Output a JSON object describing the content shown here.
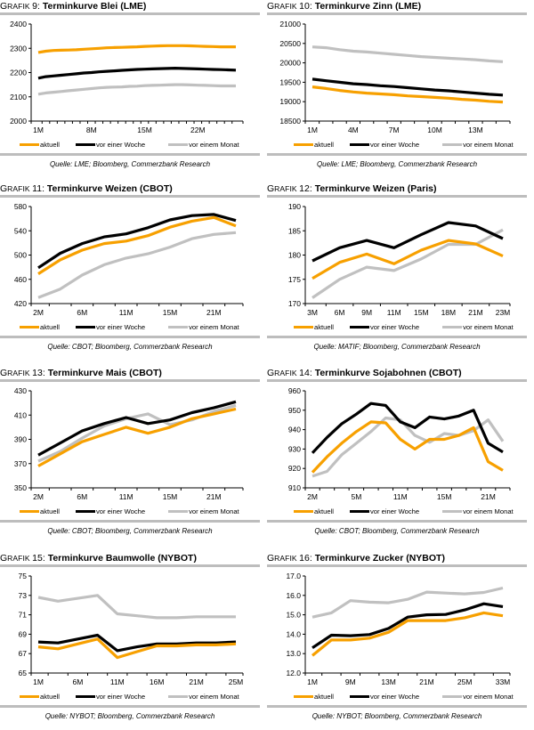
{
  "legend_labels": [
    "aktuell",
    "vor einer Woche",
    "vor einem Monat"
  ],
  "colors": {
    "aktuell": "#F7A000",
    "woche": "#000000",
    "monat": "#C0C0C0",
    "rule": "#BDBDBD"
  },
  "chart_data": [
    {
      "id": "g9",
      "type": "line",
      "prefix": "Grafik",
      "number": "9",
      "title": "Terminkurve Blei (LME)",
      "source": "Quelle: LME; Bloomberg, Commerzbank Research",
      "xlabel": "",
      "ylabel": "",
      "ylim": [
        2000,
        2400
      ],
      "yticks": [
        "2000",
        "2100",
        "2200",
        "2300",
        "2400"
      ],
      "ytick_values": [
        2000,
        2100,
        2200,
        2300,
        2400
      ],
      "x": [
        "1M",
        "2M",
        "3M",
        "4M",
        "5M",
        "6M",
        "7M",
        "8M",
        "9M",
        "10M",
        "11M",
        "12M",
        "13M",
        "14M",
        "15M",
        "16M",
        "17M",
        "18M",
        "19M",
        "20M",
        "21M",
        "22M",
        "23M",
        "24M",
        "25M",
        "26M",
        "27M"
      ],
      "xtick_labels": [
        "1M",
        "8M",
        "15M",
        "22M"
      ],
      "xtick_index": [
        0,
        7,
        14,
        21
      ],
      "series": [
        {
          "name": "aktuell",
          "values": [
            2283,
            2288,
            2291,
            2292,
            2293,
            2294,
            2296,
            2298,
            2300,
            2302,
            2303,
            2304,
            2305,
            2306,
            2308,
            2309,
            2310,
            2311,
            2311,
            2311,
            2310,
            2309,
            2308,
            2307,
            2306,
            2306,
            2306
          ]
        },
        {
          "name": "vor einer Woche",
          "values": [
            2177,
            2183,
            2186,
            2189,
            2192,
            2195,
            2198,
            2200,
            2203,
            2205,
            2207,
            2209,
            2211,
            2213,
            2214,
            2215,
            2216,
            2217,
            2218,
            2217,
            2216,
            2215,
            2214,
            2213,
            2212,
            2211,
            2210
          ]
        },
        {
          "name": "vor einem Monat",
          "values": [
            2111,
            2116,
            2119,
            2122,
            2125,
            2128,
            2131,
            2134,
            2137,
            2139,
            2140,
            2141,
            2143,
            2144,
            2146,
            2147,
            2148,
            2149,
            2150,
            2150,
            2149,
            2148,
            2147,
            2146,
            2145,
            2145,
            2145
          ]
        }
      ]
    },
    {
      "id": "g10",
      "type": "line",
      "prefix": "Grafik",
      "number": "10",
      "title": "Terminkurve Zinn (LME)",
      "source": "Quelle: LME; Bloomberg, Commerzbank Research",
      "xlabel": "",
      "ylabel": "",
      "ylim": [
        18500,
        21000
      ],
      "yticks": [
        "18500",
        "19000",
        "19500",
        "20000",
        "20500",
        "21000"
      ],
      "ytick_values": [
        18500,
        19000,
        19500,
        20000,
        20500,
        21000
      ],
      "x": [
        "1M",
        "2M",
        "3M",
        "4M",
        "5M",
        "6M",
        "7M",
        "8M",
        "9M",
        "10M",
        "11M",
        "12M",
        "13M",
        "14M",
        "15M"
      ],
      "xtick_labels": [
        "1M",
        "4M",
        "7M",
        "10M",
        "13M"
      ],
      "xtick_index": [
        0,
        3,
        6,
        9,
        12
      ],
      "series": [
        {
          "name": "aktuell",
          "values": [
            19380,
            19340,
            19290,
            19250,
            19220,
            19200,
            19180,
            19150,
            19130,
            19110,
            19090,
            19060,
            19040,
            19010,
            18990
          ]
        },
        {
          "name": "vor einer Woche",
          "values": [
            19580,
            19540,
            19500,
            19460,
            19440,
            19410,
            19390,
            19360,
            19330,
            19300,
            19280,
            19250,
            19220,
            19190,
            19170
          ]
        },
        {
          "name": "vor einem Monat",
          "values": [
            20410,
            20390,
            20340,
            20300,
            20280,
            20250,
            20220,
            20190,
            20160,
            20140,
            20120,
            20100,
            20080,
            20050,
            20030
          ]
        }
      ]
    },
    {
      "id": "g11",
      "type": "line",
      "prefix": "Grafik",
      "number": "11",
      "title": "Terminkurve Weizen (CBOT)",
      "source": "Quelle: CBOT; Bloomberg, Commerzbank Research",
      "xlabel": "",
      "ylabel": "",
      "ylim": [
        420,
        580
      ],
      "yticks": [
        "420",
        "460",
        "500",
        "540",
        "580"
      ],
      "ytick_values": [
        420,
        460,
        500,
        540,
        580
      ],
      "x": [
        "2M",
        "4M",
        "6M",
        "8M",
        "11M",
        "13M",
        "15M",
        "18M",
        "21M",
        "23M"
      ],
      "xtick_labels": [
        "2M",
        "6M",
        "11M",
        "15M",
        "21M"
      ],
      "xtick_index": [
        0,
        2,
        4,
        6,
        8
      ],
      "series": [
        {
          "name": "aktuell",
          "values": [
            469,
            492,
            508,
            519,
            523,
            532,
            546,
            556,
            562,
            548
          ]
        },
        {
          "name": "vor einer Woche",
          "values": [
            479,
            503,
            519,
            530,
            535,
            545,
            558,
            565,
            567,
            557
          ]
        },
        {
          "name": "vor einem Monat",
          "values": [
            430,
            444,
            467,
            484,
            495,
            502,
            513,
            527,
            534,
            537
          ]
        }
      ]
    },
    {
      "id": "g12",
      "type": "line",
      "prefix": "Grafik",
      "number": "12",
      "title": "Terminkurve Weizen (Paris)",
      "source": "Quelle: MATIF; Bloomberg, Commerzbank Research",
      "xlabel": "",
      "ylabel": "",
      "ylim": [
        170,
        190
      ],
      "yticks": [
        "170",
        "175",
        "180",
        "185",
        "190"
      ],
      "ytick_values": [
        170,
        175,
        180,
        185,
        190
      ],
      "x": [
        "3M",
        "6M",
        "9M",
        "11M",
        "15M",
        "18M",
        "21M",
        "23M"
      ],
      "xtick_labels": [
        "3M",
        "6M",
        "9M",
        "11M",
        "15M",
        "18M",
        "21M",
        "23M"
      ],
      "xtick_index": [
        0,
        1,
        2,
        3,
        4,
        5,
        6,
        7
      ],
      "series": [
        {
          "name": "aktuell",
          "values": [
            175.2,
            178.5,
            180.2,
            178.2,
            181.0,
            183.0,
            182.3,
            179.8
          ]
        },
        {
          "name": "vor einer Woche",
          "values": [
            178.8,
            181.5,
            183.0,
            181.5,
            184.2,
            186.7,
            186.0,
            183.4
          ]
        },
        {
          "name": "vor einem Monat",
          "values": [
            171.2,
            175.0,
            177.5,
            176.8,
            179.2,
            182.2,
            182.2,
            185.2
          ]
        }
      ]
    },
    {
      "id": "g13",
      "type": "line",
      "prefix": "Grafik",
      "number": "13",
      "title": "Terminkurve Mais (CBOT)",
      "source": "Quelle: CBOT; Bloomberg, Commerzbank Research",
      "xlabel": "",
      "ylabel": "",
      "ylim": [
        350,
        430
      ],
      "yticks": [
        "350",
        "370",
        "390",
        "410",
        "430"
      ],
      "ytick_values": [
        350,
        370,
        390,
        410,
        430
      ],
      "x": [
        "2M",
        "4M",
        "6M",
        "9M",
        "11M",
        "13M",
        "15M",
        "18M",
        "21M",
        "23M"
      ],
      "xtick_labels": [
        "2M",
        "6M",
        "11M",
        "15M",
        "21M"
      ],
      "xtick_index": [
        0,
        2,
        4,
        6,
        8
      ],
      "series": [
        {
          "name": "aktuell",
          "values": [
            368,
            378,
            388,
            394,
            400,
            395,
            400,
            407,
            411,
            415
          ]
        },
        {
          "name": "vor einer Woche",
          "values": [
            377,
            387,
            397,
            403,
            408,
            403,
            406,
            412,
            416,
            421
          ]
        },
        {
          "name": "vor einem Monat",
          "values": [
            372,
            380,
            391,
            401,
            407,
            411,
            402,
            406,
            413,
            418
          ]
        }
      ]
    },
    {
      "id": "g14",
      "type": "line",
      "prefix": "Grafik",
      "number": "14",
      "title": "Terminkurve Sojabohnen (CBOT)",
      "source": "Quelle: CBOT; Bloomberg, Commerzbank Research",
      "xlabel": "",
      "ylabel": "",
      "ylim": [
        910,
        960
      ],
      "yticks": [
        "910",
        "920",
        "930",
        "940",
        "950",
        "960"
      ],
      "ytick_values": [
        910,
        920,
        930,
        940,
        950,
        960
      ],
      "x": [
        "2M",
        "3M",
        "4M",
        "5M",
        "7M",
        "9M",
        "11M",
        "13M",
        "14M",
        "15M",
        "17M",
        "19M",
        "21M",
        "23M"
      ],
      "xtick_labels": [
        "2M",
        "5M",
        "11M",
        "15M",
        "21M"
      ],
      "xtick_index": [
        0,
        3,
        6,
        9,
        12
      ],
      "series": [
        {
          "name": "aktuell",
          "values": [
            918,
            926,
            933,
            939,
            944,
            943.5,
            935,
            930,
            935,
            935,
            937,
            941,
            923.5,
            919
          ]
        },
        {
          "name": "vor einer Woche",
          "values": [
            928,
            936,
            943,
            948,
            953.5,
            952.5,
            944,
            941,
            946.5,
            945.5,
            947,
            950,
            933,
            928.5
          ]
        },
        {
          "name": "vor einem Monat",
          "values": [
            916,
            918.5,
            927,
            933,
            939,
            946,
            945,
            937,
            933.5,
            938,
            937,
            939.5,
            945,
            934
          ]
        }
      ]
    },
    {
      "id": "g15",
      "type": "line",
      "prefix": "Grafik",
      "number": "15",
      "title": "Terminkurve Baumwolle (NYBOT)",
      "source": "Quelle: NYBOT; Bloomberg, Commerzbank Research",
      "xlabel": "",
      "ylabel": "",
      "ylim": [
        65,
        75
      ],
      "yticks": [
        "65",
        "67",
        "69",
        "71",
        "73",
        "75"
      ],
      "ytick_values": [
        65,
        67,
        69,
        71,
        73,
        75
      ],
      "x": [
        "1M",
        "3M",
        "6M",
        "8M",
        "11M",
        "13M",
        "16M",
        "18M",
        "21M",
        "23M",
        "25M"
      ],
      "xtick_labels": [
        "1M",
        "6M",
        "11M",
        "16M",
        "21M",
        "25M"
      ],
      "xtick_index": [
        0,
        2,
        4,
        6,
        8,
        10
      ],
      "series": [
        {
          "name": "aktuell",
          "values": [
            67.7,
            67.5,
            68.0,
            68.5,
            66.6,
            67.2,
            67.8,
            67.8,
            67.9,
            67.9,
            68.0
          ]
        },
        {
          "name": "vor einer Woche",
          "values": [
            68.2,
            68.1,
            68.5,
            68.9,
            67.3,
            67.7,
            68.0,
            68.0,
            68.1,
            68.1,
            68.2
          ]
        },
        {
          "name": "vor einem Monat",
          "values": [
            72.8,
            72.4,
            72.7,
            73.0,
            71.1,
            70.9,
            70.7,
            70.7,
            70.8,
            70.8,
            70.8
          ]
        }
      ]
    },
    {
      "id": "g16",
      "type": "line",
      "prefix": "Grafik",
      "number": "16",
      "title": "Terminkurve Zucker (NYBOT)",
      "source": "Quelle: NYBOT; Bloomberg, Commerzbank Research",
      "xlabel": "",
      "ylabel": "",
      "ylim": [
        12.0,
        17.0
      ],
      "yticks": [
        "12.0",
        "13.0",
        "14.0",
        "15.0",
        "16.0",
        "17.0"
      ],
      "ytick_values": [
        12.0,
        13.0,
        14.0,
        15.0,
        16.0,
        17.0
      ],
      "x": [
        "1M",
        "5M",
        "9M",
        "11M",
        "13M",
        "17M",
        "21M",
        "23M",
        "25M",
        "29M",
        "33M"
      ],
      "xtick_labels": [
        "1M",
        "9M",
        "13M",
        "21M",
        "25M",
        "33M"
      ],
      "xtick_index": [
        0,
        2,
        4,
        6,
        8,
        10
      ],
      "series": [
        {
          "name": "aktuell",
          "values": [
            12.9,
            13.7,
            13.7,
            13.8,
            14.1,
            14.7,
            14.7,
            14.7,
            14.85,
            15.1,
            14.95
          ]
        },
        {
          "name": "vor einer Woche",
          "values": [
            13.3,
            13.95,
            13.92,
            13.98,
            14.3,
            14.88,
            15.0,
            15.02,
            15.25,
            15.57,
            15.42
          ]
        },
        {
          "name": "vor einem Monat",
          "values": [
            14.88,
            15.1,
            15.73,
            15.65,
            15.62,
            15.8,
            16.17,
            16.12,
            16.08,
            16.15,
            16.38
          ]
        }
      ]
    }
  ]
}
